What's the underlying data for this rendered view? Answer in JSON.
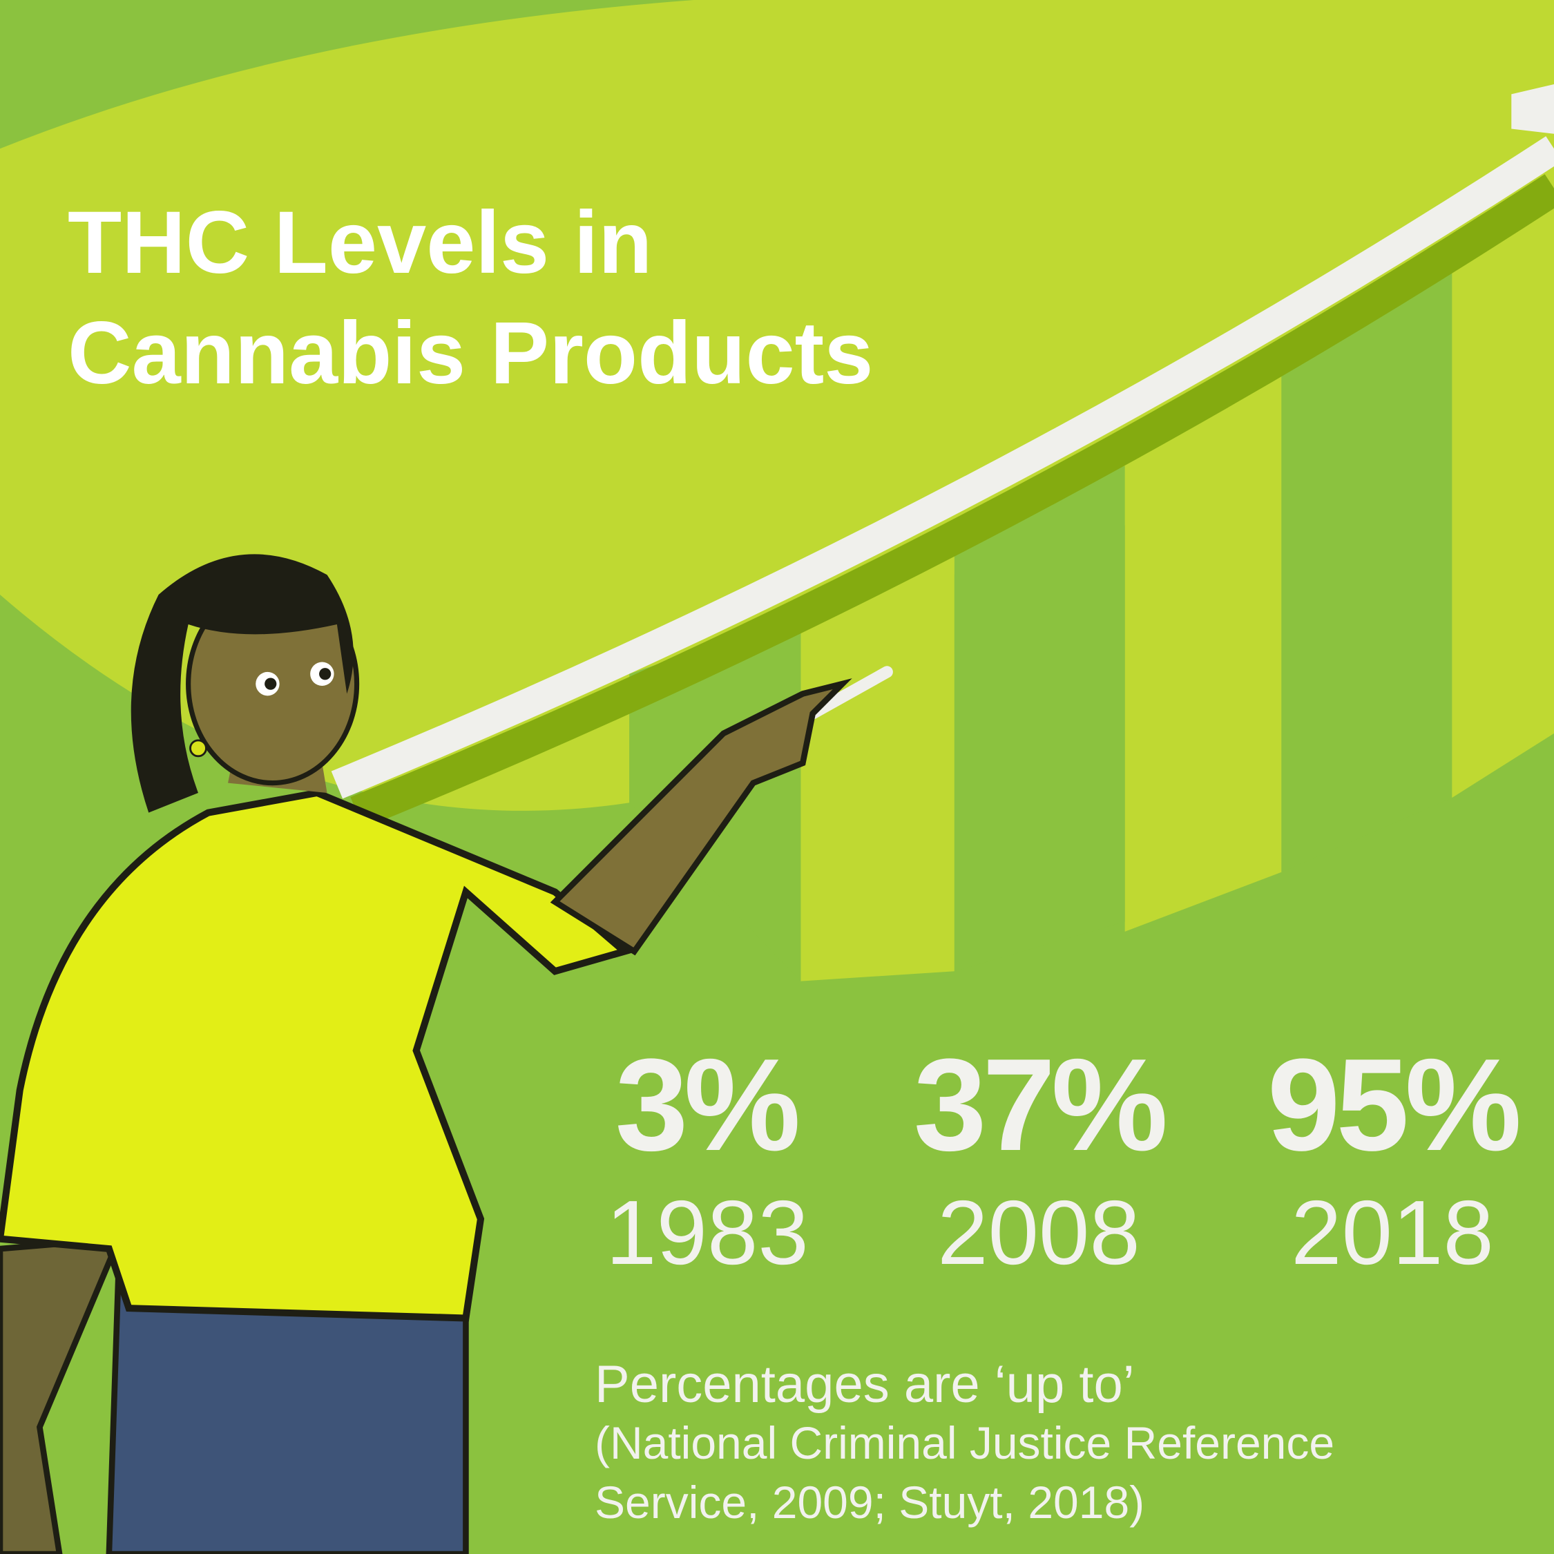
{
  "title": {
    "line1": "THC Levels in",
    "line2": "Cannabis Products"
  },
  "stats": [
    {
      "value": "3%",
      "year": "1983"
    },
    {
      "value": "37%",
      "year": "2008"
    },
    {
      "value": "95%",
      "year": "2018"
    }
  ],
  "note": "Percentages are ‘up to’",
  "source": {
    "line1": "(National Criminal Justice Reference",
    "line2": "Service, 2009; Stuyt, 2018)"
  }
}
